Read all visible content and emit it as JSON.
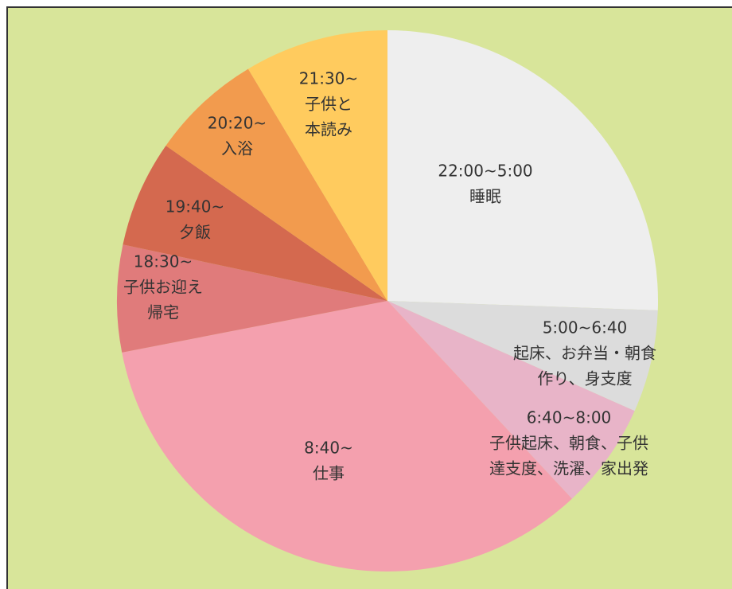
{
  "chart_data": {
    "type": "pie",
    "categories": [
      [
        "22:00~5:00",
        "睡眠"
      ],
      [
        "5:00~6:40",
        "起床、お弁当・朝食",
        "作り、身支度"
      ],
      [
        "6:40~8:00",
        "子供起床、朝食、子供",
        "達支度、洗濯、家出発"
      ],
      [
        "8:40~",
        "仕事"
      ],
      [
        "18:30~",
        "子供お迎え",
        "帰宅"
      ],
      [
        "19:40~",
        "夕飯"
      ],
      [
        "20:20~",
        "入浴"
      ],
      [
        "21:30~",
        "子供と",
        "本読み"
      ]
    ],
    "values": [
      92,
      22,
      23,
      122,
      23,
      23,
      24,
      31
    ],
    "colors": [
      "#eeeeee",
      "#dcdcdc",
      "#e8b4c8",
      "#f4a0ae",
      "#e07b7b",
      "#d4694f",
      "#f29b4e",
      "#ffcb5e"
    ]
  }
}
